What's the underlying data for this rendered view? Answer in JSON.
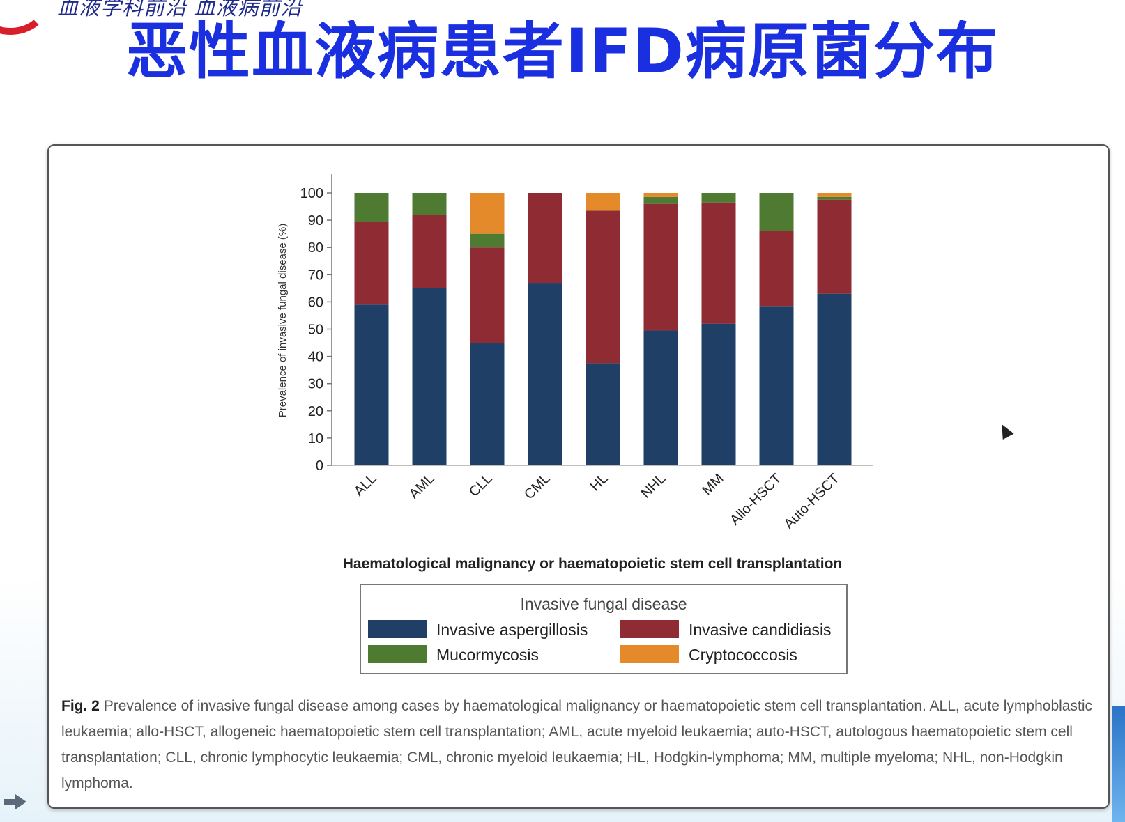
{
  "slide": {
    "header_script": "血液学科前沿 血液病前沿",
    "title": "恶性血液病患者IFD病原菌分布"
  },
  "chart_data": {
    "type": "bar",
    "stacked": true,
    "categories": [
      "ALL",
      "AML",
      "CLL",
      "CML",
      "HL",
      "NHL",
      "MM",
      "Allo-HSCT",
      "Auto-HSCT"
    ],
    "series": [
      {
        "name": "Invasive aspergillosis",
        "color": "#1f3f66",
        "values": [
          59,
          65,
          45,
          67,
          37.5,
          49.5,
          52,
          58.5,
          63
        ]
      },
      {
        "name": "Invasive candidiasis",
        "color": "#8e2b33",
        "values": [
          30.5,
          27,
          35,
          33,
          56,
          46.5,
          44.5,
          27.5,
          34.5
        ]
      },
      {
        "name": "Mucormycosis",
        "color": "#4f7a31",
        "values": [
          10.5,
          8,
          5,
          0,
          0,
          2.5,
          3.5,
          14,
          1
        ]
      },
      {
        "name": "Cryptococcosis",
        "color": "#e48a2a",
        "values": [
          0,
          0,
          15,
          0,
          6.5,
          1.5,
          0,
          0,
          1.5
        ]
      }
    ],
    "ylabel": "Prevalence of invasive fungal disease (%)",
    "xlabel": "Haematological malignancy or haematopoietic stem cell transplantation",
    "ylim": [
      0,
      100
    ],
    "yticks": [
      "0",
      "10",
      "20",
      "30",
      "40",
      "50",
      "60",
      "70",
      "80",
      "90",
      "100"
    ],
    "legend_title": "Invasive fungal disease",
    "legend_position": "bottom-center"
  },
  "legend": {
    "title": "Invasive fungal disease",
    "items": [
      {
        "label": "Invasive aspergillosis",
        "color": "#1f3f66"
      },
      {
        "label": "Invasive candidiasis",
        "color": "#8e2b33"
      },
      {
        "label": "Mucormycosis",
        "color": "#4f7a31"
      },
      {
        "label": "Cryptococcosis",
        "color": "#e48a2a"
      }
    ]
  },
  "caption": {
    "fig_label": "Fig. 2",
    "text": "Prevalence of invasive fungal disease among cases by haematological malignancy or haematopoietic stem cell transplantation. ALL, acute lymphoblastic leukaemia; allo-HSCT, allogeneic haematopoietic stem cell transplantation; AML, acute myeloid leukaemia; auto-HSCT, autologous haematopoietic stem cell transplantation; CLL, chronic lymphocytic leukaemia; CML, chronic myeloid leukaemia; HL, Hodgkin-lymphoma; MM, multiple myeloma; NHL, non-Hodgkin lymphoma."
  },
  "icons": {
    "cursor": "mouse-pointer-icon",
    "nav": "next-arrow-icon"
  }
}
